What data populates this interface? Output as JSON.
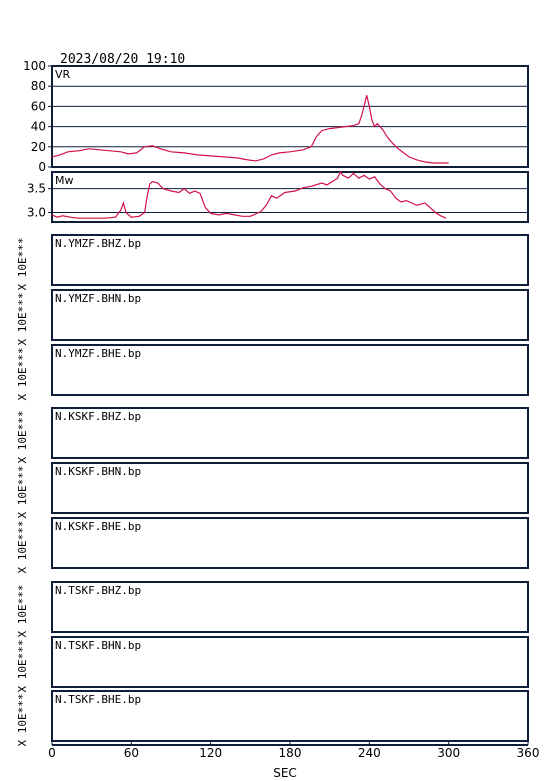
{
  "header": {
    "datetime": "2023/08/20  19:10"
  },
  "colors": {
    "frame": "#0f1f3a",
    "trace": "#d0104c",
    "text": "#000000"
  },
  "chart_data": [
    {
      "type": "line",
      "title": "VR",
      "xlim": [
        0,
        360
      ],
      "ylim": [
        0,
        100
      ],
      "yticks": [
        "0",
        "20",
        "40",
        "60",
        "80",
        "100"
      ],
      "yticks_values": [
        0,
        20,
        40,
        60,
        80,
        100
      ],
      "grid": true,
      "series": [
        {
          "x": [
            0,
            6,
            12,
            20,
            28,
            36,
            44,
            52,
            58,
            64,
            70,
            76,
            82,
            90,
            100,
            110,
            120,
            130,
            140,
            148,
            154,
            160,
            166,
            172,
            180,
            190,
            196,
            200,
            204,
            210,
            216,
            222,
            228,
            232,
            234,
            236,
            238,
            240,
            242,
            244,
            246,
            250,
            254,
            258,
            262,
            266,
            270,
            276,
            282,
            288,
            296,
            300
          ],
          "y": [
            10,
            12,
            15,
            16,
            18,
            17,
            16,
            15,
            13,
            14,
            20,
            21,
            18,
            15,
            14,
            12,
            11,
            10,
            9,
            7,
            6,
            8,
            12,
            14,
            15,
            17,
            20,
            30,
            36,
            38,
            39,
            40,
            41,
            43,
            50,
            60,
            71,
            60,
            46,
            40,
            43,
            37,
            29,
            23,
            18,
            14,
            10,
            7,
            5,
            4,
            4,
            4
          ]
        }
      ]
    },
    {
      "type": "line",
      "title": "Mw",
      "xlim": [
        0,
        360
      ],
      "ylim": [
        2.8,
        3.85
      ],
      "yticks": [
        "3.0",
        "3.5"
      ],
      "yticks_values": [
        3.0,
        3.5
      ],
      "grid": true,
      "series": [
        {
          "x": [
            0,
            4,
            8,
            14,
            20,
            30,
            40,
            48,
            52,
            54,
            56,
            60,
            66,
            70,
            72,
            74,
            76,
            80,
            84,
            90,
            96,
            100,
            104,
            108,
            112,
            116,
            120,
            126,
            132,
            138,
            144,
            150,
            158,
            162,
            166,
            170,
            176,
            184,
            190,
            196,
            204,
            208,
            212,
            216,
            218,
            220,
            224,
            228,
            232,
            236,
            240,
            244,
            248,
            252,
            256,
            260,
            264,
            268,
            272,
            276,
            282,
            286,
            290,
            294,
            298
          ],
          "y": [
            2.95,
            2.9,
            2.93,
            2.9,
            2.88,
            2.88,
            2.88,
            2.9,
            3.05,
            3.2,
            3.0,
            2.9,
            2.92,
            3.0,
            3.35,
            3.6,
            3.65,
            3.62,
            3.5,
            3.45,
            3.42,
            3.5,
            3.4,
            3.45,
            3.4,
            3.1,
            2.98,
            2.95,
            2.98,
            2.95,
            2.92,
            2.92,
            3.02,
            3.15,
            3.35,
            3.3,
            3.42,
            3.45,
            3.52,
            3.55,
            3.62,
            3.58,
            3.65,
            3.72,
            3.85,
            3.78,
            3.72,
            3.82,
            3.72,
            3.78,
            3.7,
            3.75,
            3.6,
            3.5,
            3.45,
            3.3,
            3.22,
            3.25,
            3.2,
            3.15,
            3.2,
            3.1,
            3.0,
            2.93,
            2.88
          ]
        }
      ]
    },
    {
      "type": "line",
      "xlabel": "SEC",
      "xlim": [
        0,
        360
      ],
      "xticks": [
        "0",
        "60",
        "120",
        "180",
        "240",
        "300",
        "360"
      ],
      "xticks_values": [
        0,
        60,
        120,
        180,
        240,
        300,
        360
      ],
      "ylabel": "X 10E***",
      "panels": [
        {
          "station": "N.YMZF",
          "channel": "N.YMZF.BHZ.bp"
        },
        {
          "station": "N.YMZF",
          "channel": "N.YMZF.BHN.bp"
        },
        {
          "station": "N.YMZF",
          "channel": "N.YMZF.BHE.bp"
        },
        {
          "station": "N.KSKF",
          "channel": "N.KSKF.BHZ.bp"
        },
        {
          "station": "N.KSKF",
          "channel": "N.KSKF.BHN.bp"
        },
        {
          "station": "N.KSKF",
          "channel": "N.KSKF.BHE.bp"
        },
        {
          "station": "N.TSKF",
          "channel": "N.TSKF.BHZ.bp"
        },
        {
          "station": "N.TSKF",
          "channel": "N.TSKF.BHN.bp"
        },
        {
          "station": "N.TSKF",
          "channel": "N.TSKF.BHE.bp"
        }
      ]
    }
  ]
}
